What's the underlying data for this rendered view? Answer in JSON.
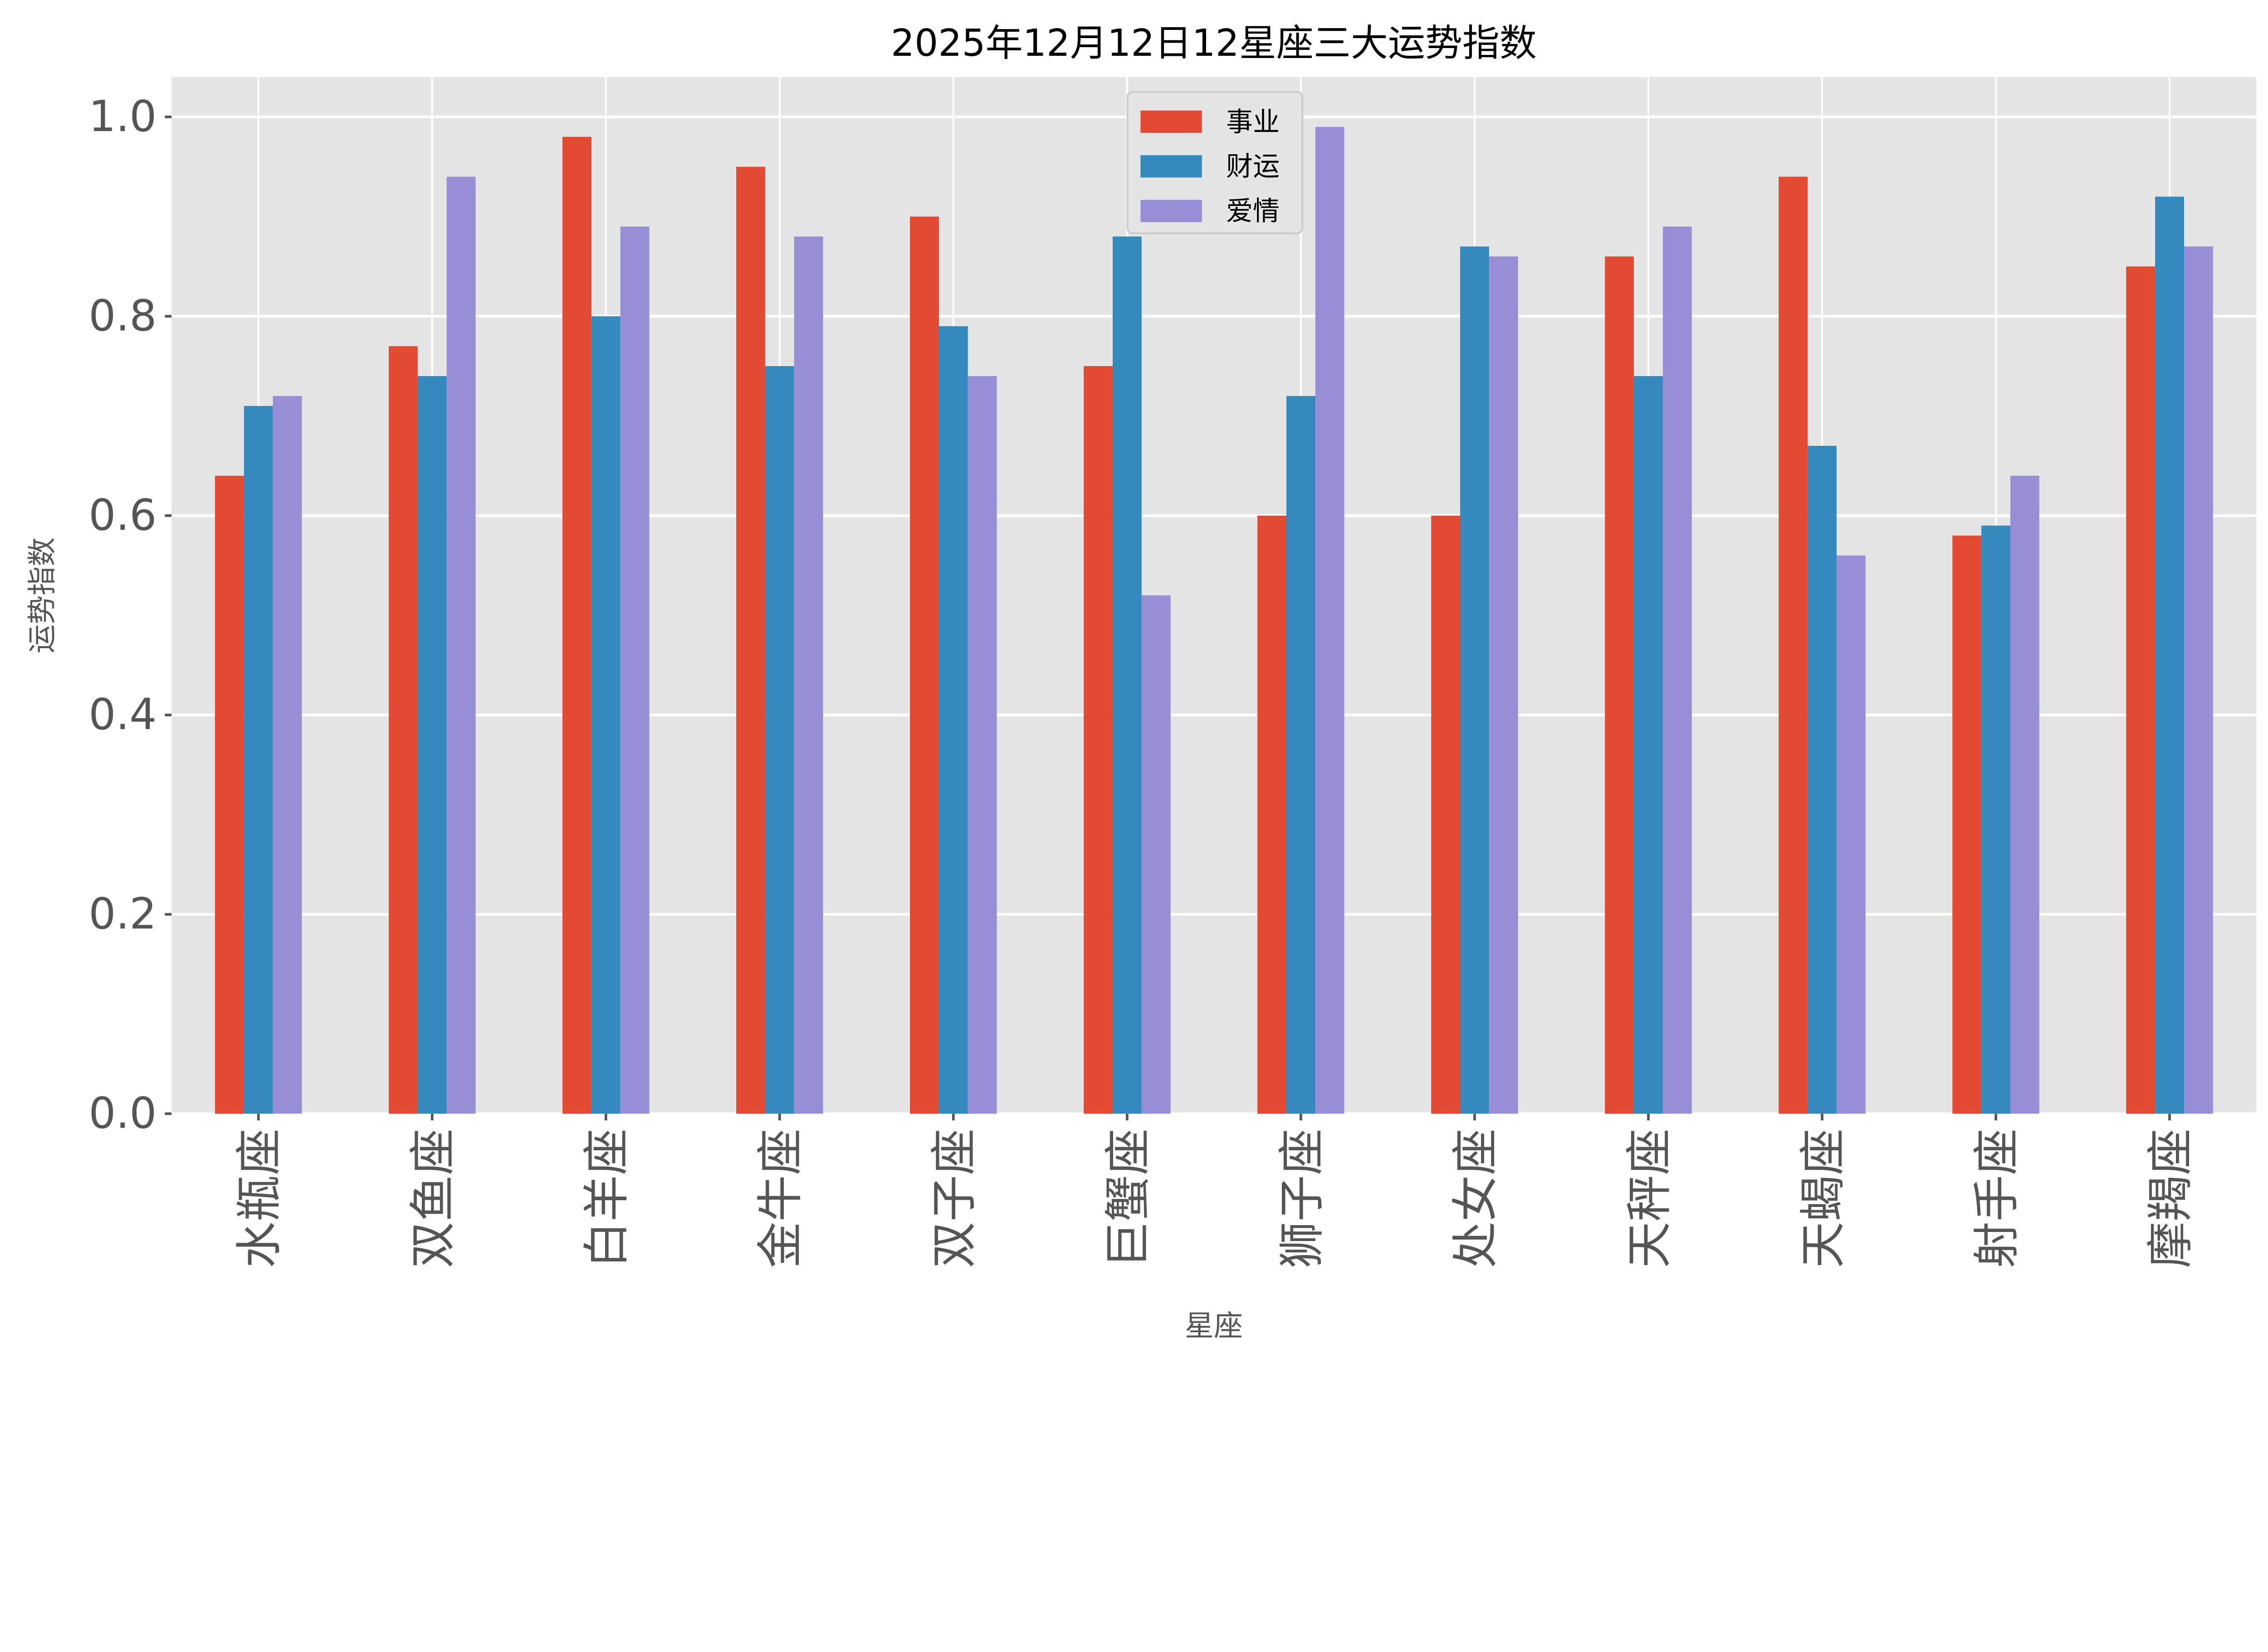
{
  "chart_data": {
    "type": "bar",
    "title": "2025年12月12日12星座三大运势指数",
    "xlabel": "星座",
    "ylabel": "运势指数",
    "categories": [
      "水瓶座",
      "双鱼座",
      "白羊座",
      "金牛座",
      "双子座",
      "巨蟹座",
      "狮子座",
      "处女座",
      "天秤座",
      "天蝎座",
      "射手座",
      "摩羯座"
    ],
    "series": [
      {
        "name": "事业",
        "color": "#E24A33",
        "values": [
          0.64,
          0.77,
          0.98,
          0.95,
          0.9,
          0.75,
          0.6,
          0.6,
          0.86,
          0.94,
          0.58,
          0.85
        ]
      },
      {
        "name": "财运",
        "color": "#348ABD",
        "values": [
          0.71,
          0.74,
          0.8,
          0.75,
          0.79,
          0.88,
          0.72,
          0.87,
          0.74,
          0.67,
          0.59,
          0.92
        ]
      },
      {
        "name": "爱情",
        "color": "#988ED5",
        "values": [
          0.72,
          0.94,
          0.89,
          0.88,
          0.74,
          0.52,
          0.99,
          0.86,
          0.89,
          0.56,
          0.64,
          0.87
        ]
      }
    ],
    "yticks": [
      "0.0",
      "0.2",
      "0.4",
      "0.6",
      "0.8",
      "1.0"
    ],
    "ylim": [
      0,
      1.04
    ],
    "grid": true,
    "legend_position": "top-center",
    "background_color": "#E5E5E5"
  }
}
